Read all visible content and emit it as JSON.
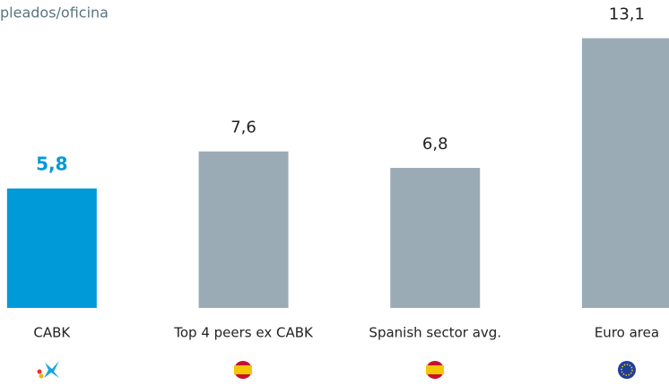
{
  "chart_data": {
    "type": "bar",
    "title": "pleados/oficina",
    "categories": [
      "CABK",
      "Top 4 peers ex CABK",
      "Spanish sector avg.",
      "Euro area"
    ],
    "values": [
      5.8,
      7.6,
      6.8,
      13.1
    ],
    "value_labels": [
      "5,8",
      "7,6",
      "6,8",
      "13,1"
    ],
    "colors": [
      "#009ad9",
      "#9aabb5",
      "#9aabb5",
      "#9aabb5"
    ],
    "ylim": [
      0,
      15
    ]
  }
}
